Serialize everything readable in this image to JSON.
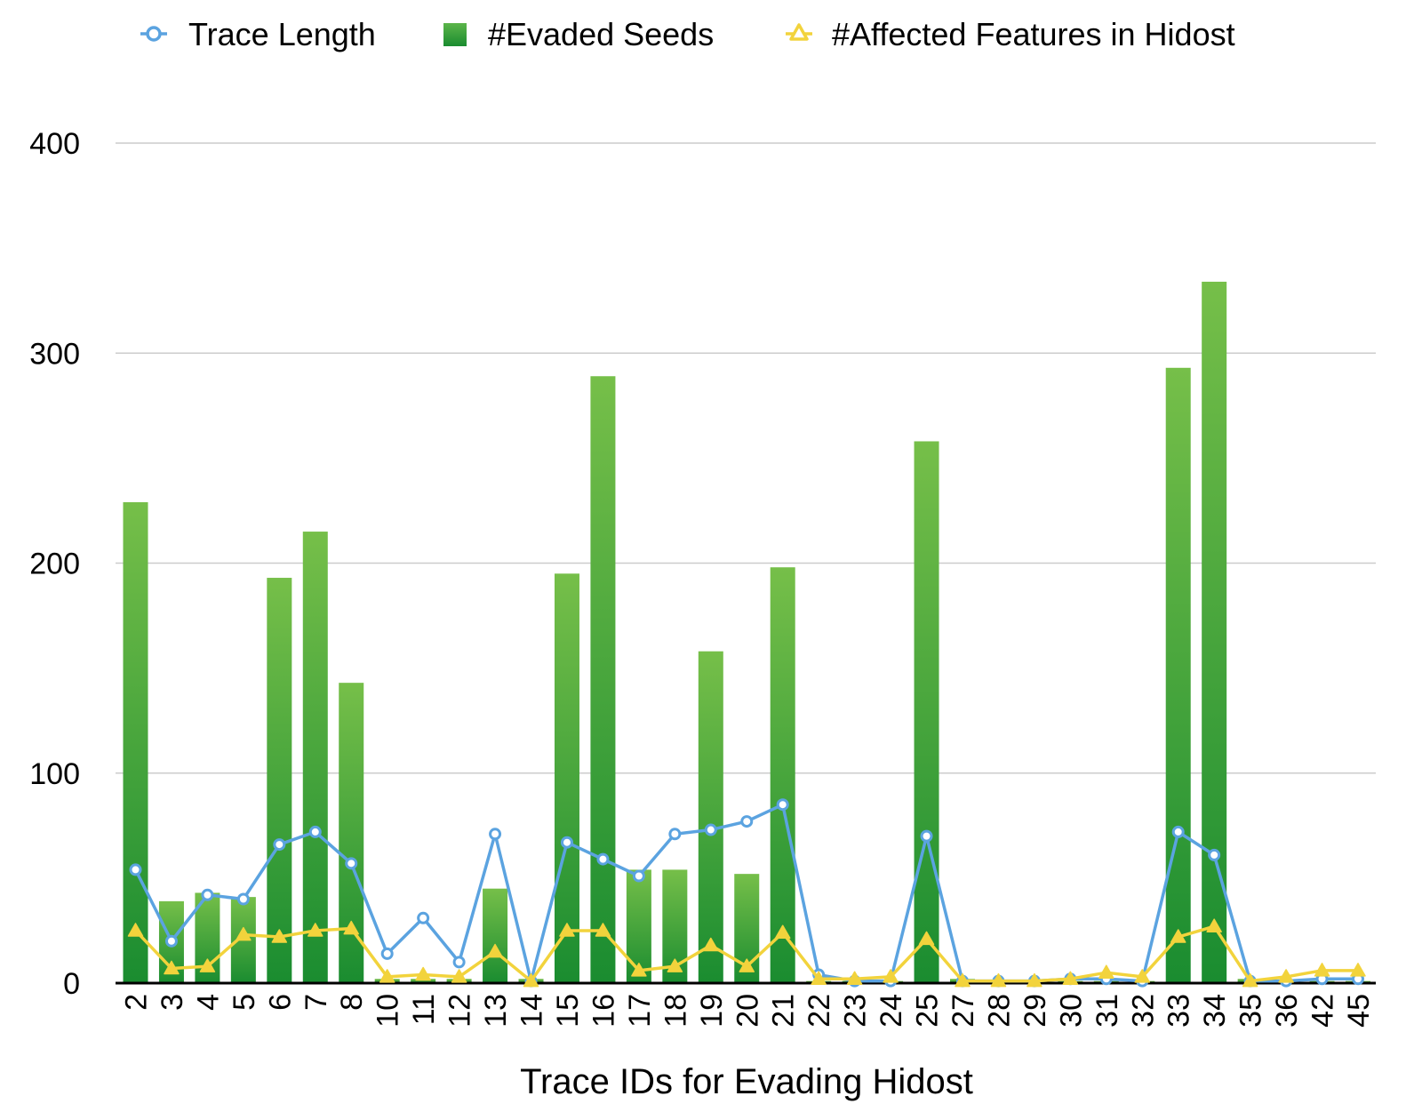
{
  "chart_data": {
    "type": "bar",
    "xlabel": "Trace IDs for Evading Hidost",
    "ylabel": "",
    "ylim": [
      0,
      400
    ],
    "yticks": [
      0,
      100,
      200,
      300,
      400
    ],
    "grid": true,
    "legend": "top",
    "categories": [
      "2",
      "3",
      "4",
      "5",
      "6",
      "7",
      "8",
      "10",
      "11",
      "12",
      "13",
      "14",
      "15",
      "16",
      "17",
      "18",
      "19",
      "20",
      "21",
      "22",
      "23",
      "24",
      "25",
      "27",
      "28",
      "29",
      "30",
      "31",
      "32",
      "33",
      "34",
      "35",
      "36",
      "42",
      "45"
    ],
    "series": [
      {
        "name": "Trace Length",
        "kind": "line",
        "marker": "circle",
        "color": "#5ba3e0",
        "values": [
          54,
          20,
          42,
          40,
          66,
          72,
          57,
          14,
          31,
          10,
          71,
          1,
          67,
          59,
          51,
          71,
          73,
          77,
          85,
          4,
          1,
          1,
          70,
          1,
          1,
          1,
          2,
          2,
          1,
          72,
          61,
          1,
          1,
          2,
          2
        ]
      },
      {
        "name": "#Evaded Seeds",
        "kind": "bar",
        "color": "#3aa33a",
        "values": [
          229,
          39,
          43,
          41,
          193,
          215,
          143,
          2,
          2,
          2,
          45,
          2,
          195,
          289,
          54,
          54,
          158,
          52,
          198,
          1,
          1,
          1,
          258,
          2,
          1,
          1,
          1,
          1,
          1,
          293,
          334,
          2,
          1,
          1,
          1
        ]
      },
      {
        "name": "#Affected Features in Hidost",
        "kind": "line",
        "marker": "triangle",
        "color": "#f2d33c",
        "values": [
          25,
          7,
          8,
          23,
          22,
          25,
          26,
          3,
          4,
          3,
          15,
          1,
          25,
          25,
          6,
          8,
          18,
          8,
          24,
          2,
          2,
          3,
          21,
          1,
          1,
          1,
          2,
          5,
          3,
          22,
          27,
          1,
          3,
          6,
          6
        ]
      }
    ]
  }
}
